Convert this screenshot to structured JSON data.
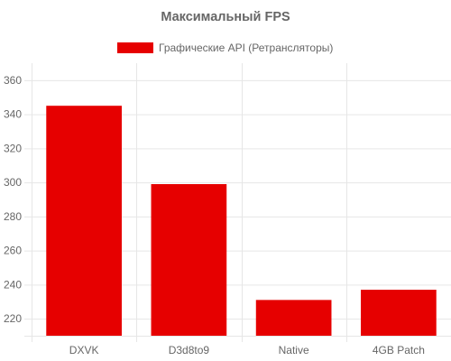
{
  "chart_data": {
    "type": "bar",
    "title": "Максимальный FPS",
    "categories": [
      "DXVK",
      "D3d8to9",
      "Native",
      "4GB Patch"
    ],
    "series": [
      {
        "name": "Графические API (Ретрансляторы)",
        "values": [
          345,
          299,
          231,
          237
        ],
        "color": "#e60000"
      }
    ],
    "xlabel": "",
    "ylabel": "",
    "ylim": [
      210,
      370
    ],
    "yticks": [
      220,
      240,
      260,
      280,
      300,
      320,
      340,
      360
    ],
    "grid": true,
    "legend_position": "top"
  },
  "colors": {
    "grid": "#e6e6e6",
    "text": "#666666",
    "background": "#ffffff"
  }
}
